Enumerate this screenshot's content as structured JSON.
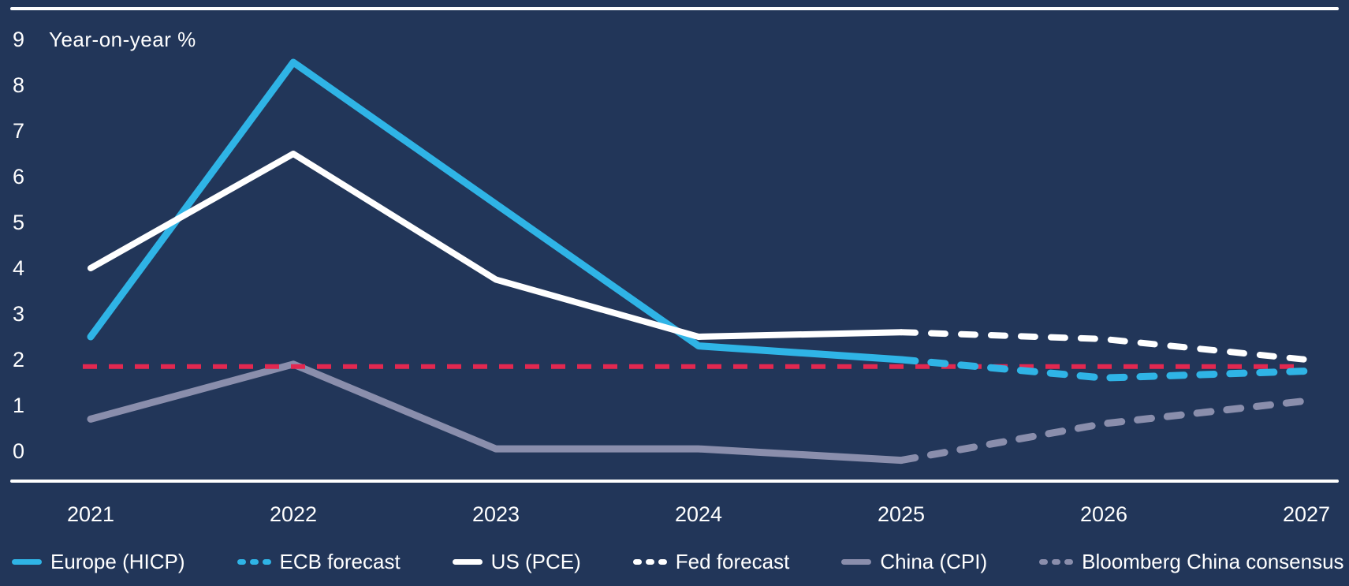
{
  "colors": {
    "background": "#223659",
    "cyan": "#2FB4E6",
    "white": "#FFFFFF",
    "gray": "#8A8EAC",
    "red": "#E22850",
    "text": "#FFFFFF"
  },
  "chart_data": {
    "type": "line",
    "title": "",
    "ylabel": "Year-on-year %",
    "xlabel": "",
    "x_categories": [
      "2021",
      "2022",
      "2023",
      "2024",
      "2025",
      "2026",
      "2027"
    ],
    "y_ticks": [
      "9",
      "8",
      "7",
      "6",
      "5",
      "4",
      "3",
      "2",
      "1",
      "0"
    ],
    "ylim": [
      -0.7,
      9.7
    ],
    "grid": "off",
    "legend_position": "bottom",
    "series": [
      {
        "name": "Europe (HICP)",
        "style": "solid",
        "color_key": "cyan",
        "x": [
          2021,
          2022,
          2023,
          2024,
          2025
        ],
        "values": [
          2.5,
          8.5,
          5.4,
          2.3,
          2.0
        ]
      },
      {
        "name": "ECB forecast",
        "style": "dashed",
        "color_key": "cyan",
        "x": [
          2025,
          2026,
          2027
        ],
        "values": [
          2.0,
          1.6,
          1.75
        ]
      },
      {
        "name": "US (PCE)",
        "style": "solid",
        "color_key": "white",
        "x": [
          2021,
          2022,
          2023,
          2024,
          2025
        ],
        "values": [
          4.0,
          6.5,
          3.75,
          2.5,
          2.6
        ]
      },
      {
        "name": "Fed forecast",
        "style": "dashed",
        "color_key": "white",
        "x": [
          2025,
          2026,
          2027
        ],
        "values": [
          2.6,
          2.45,
          2.0
        ]
      },
      {
        "name": "China (CPI)",
        "style": "solid",
        "color_key": "gray",
        "x": [
          2021,
          2022,
          2023,
          2024,
          2025
        ],
        "values": [
          0.7,
          1.9,
          0.05,
          0.05,
          -0.2
        ]
      },
      {
        "name": "Bloomberg China consensus",
        "style": "dashed",
        "color_key": "gray",
        "x": [
          2025,
          2026,
          2027
        ],
        "values": [
          -0.2,
          0.6,
          1.1
        ]
      }
    ],
    "target_line": {
      "value": 1.85,
      "style": "dashed",
      "color_key": "red",
      "x_start": 2021,
      "x_end": 2027
    }
  }
}
